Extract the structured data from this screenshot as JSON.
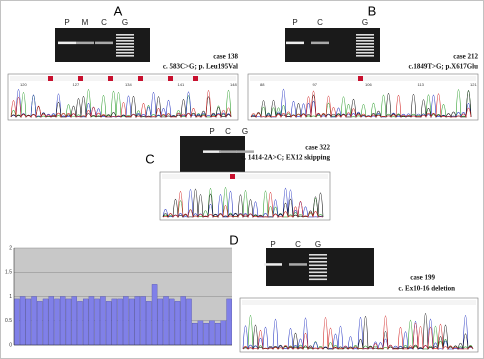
{
  "panels": [
    {
      "label": "A",
      "lanes": [
        "P",
        "M",
        "C",
        "G"
      ],
      "case": "case 138",
      "mutation": "c. 583C>G; p. Leu195Val",
      "positions": [
        "120",
        "127",
        "134",
        "141",
        "148"
      ]
    },
    {
      "label": "B",
      "lanes": [
        "P",
        "C",
        "G"
      ],
      "case": "case 212",
      "mutation": "c.1849T>G; p.X617Glu",
      "positions": [
        "88",
        "97",
        "106",
        "113",
        "121"
      ]
    },
    {
      "label": "C",
      "lanes": [
        "P",
        "C",
        "G"
      ],
      "case": "case 322",
      "mutation": "c. 1414-2A>C; EX12 skipping"
    },
    {
      "label": "D",
      "lanes": [
        "P",
        "C",
        "G"
      ],
      "case": "case 199",
      "mutation": "c. Ex10-16 deletion"
    }
  ],
  "chart_data": {
    "type": "bar",
    "color": "#8080e8",
    "values": [
      0.95,
      1.0,
      0.95,
      1.0,
      0.9,
      0.95,
      1.0,
      0.95,
      1.0,
      0.95,
      1.0,
      0.9,
      0.95,
      1.0,
      0.95,
      1.0,
      0.9,
      0.95,
      0.95,
      1.0,
      0.95,
      1.0,
      1.0,
      0.9,
      1.25,
      0.95,
      1.0,
      0.95,
      0.9,
      1.0,
      0.95,
      0.45,
      0.5,
      0.45,
      0.5,
      0.45,
      0.5,
      0.95
    ],
    "ylim": [
      0,
      2
    ],
    "yticks": [
      0,
      0.5,
      1,
      1.5,
      2
    ],
    "grid": true
  }
}
